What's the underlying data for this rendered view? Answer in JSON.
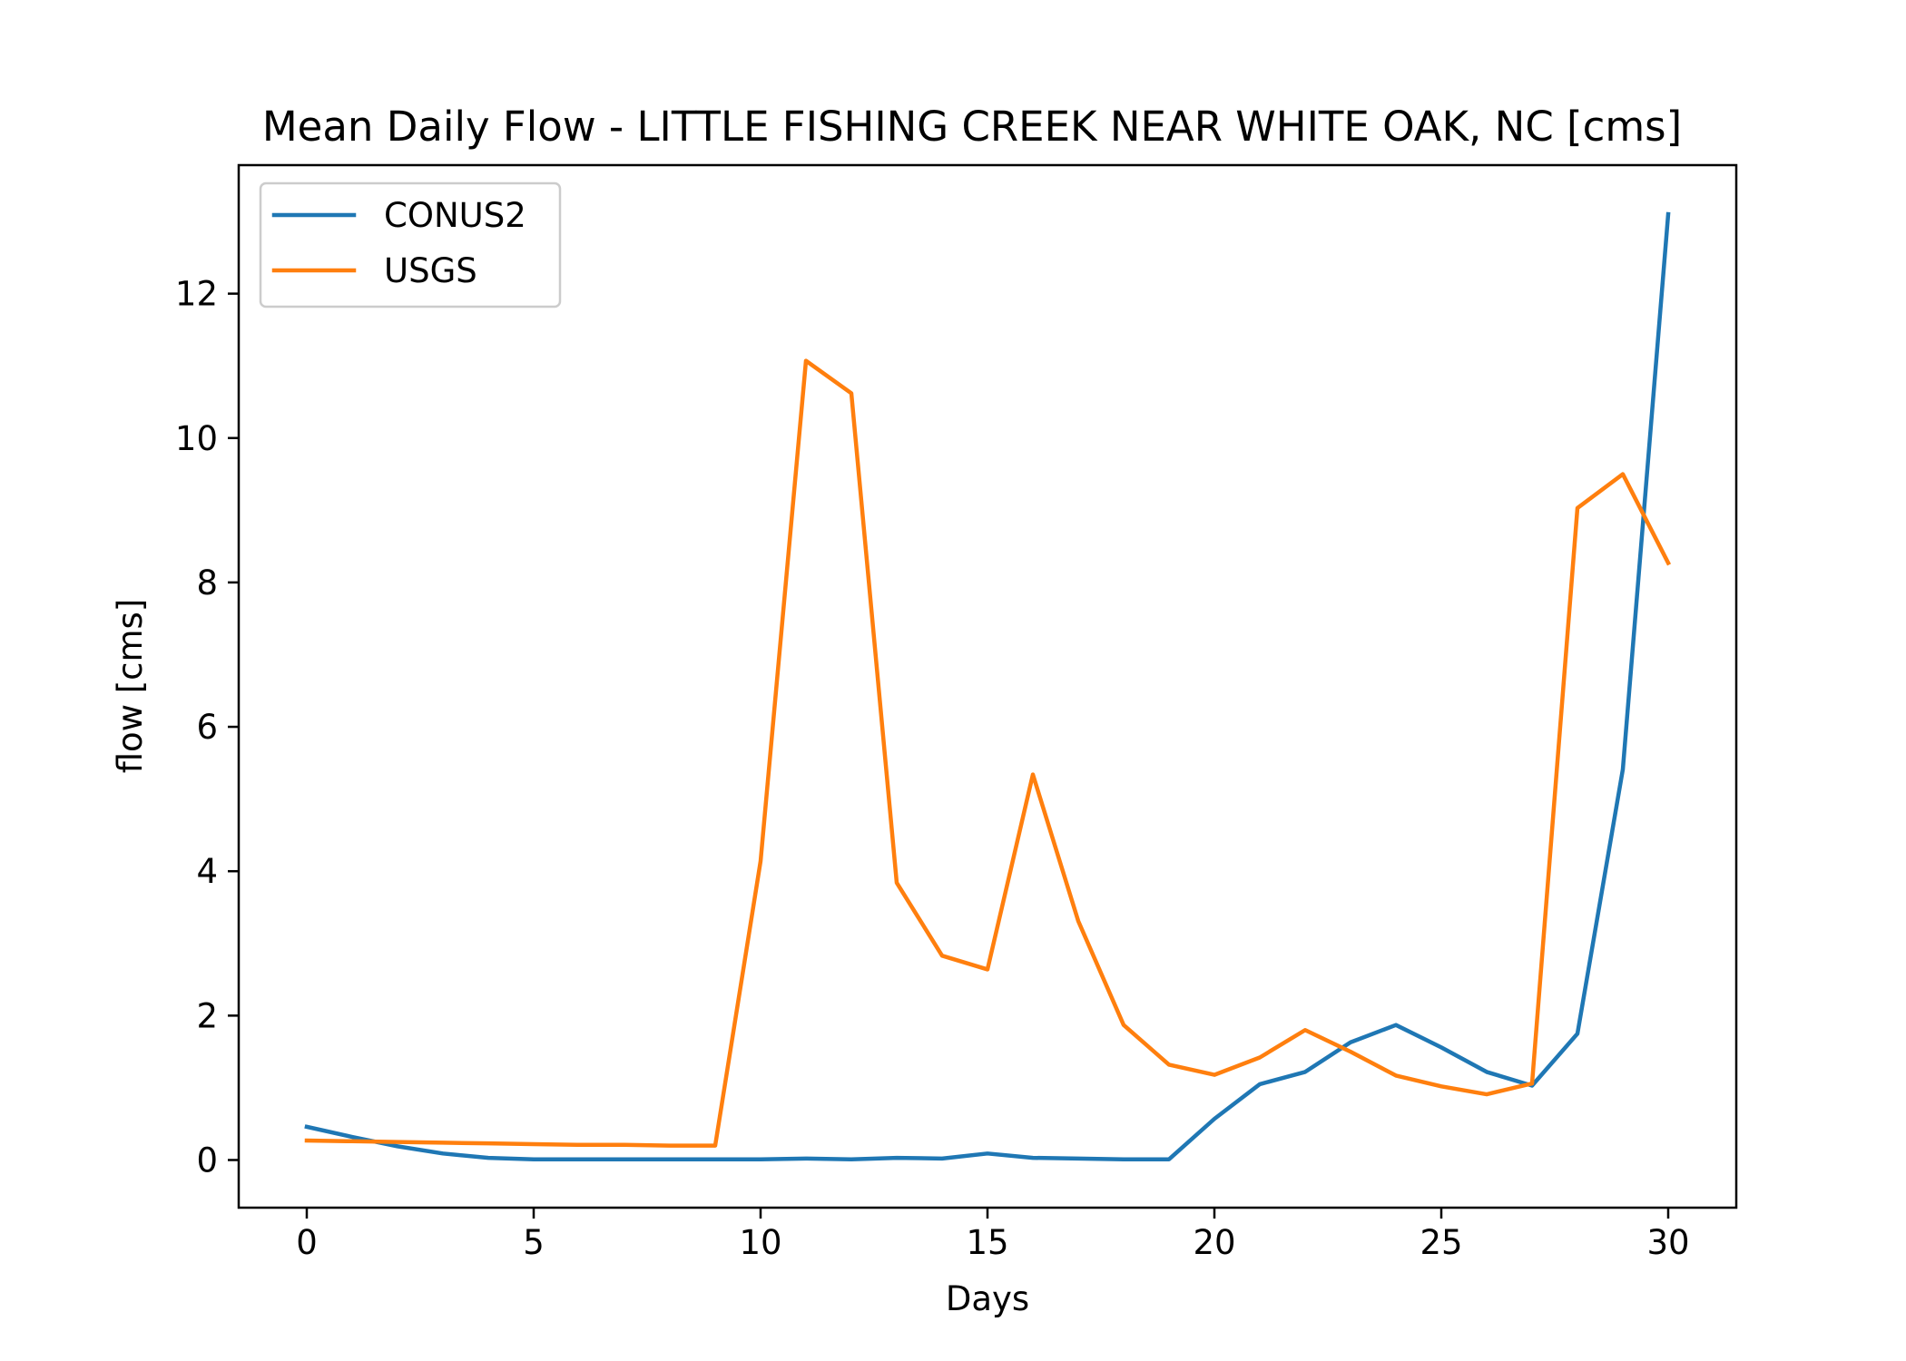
{
  "chart_data": {
    "type": "line",
    "title": "Mean Daily Flow - LITTLE FISHING CREEK NEAR WHITE OAK, NC [cms]",
    "xlabel": "Days",
    "ylabel": "flow [cms]",
    "xlim": [
      -1.5,
      31.5
    ],
    "ylim": [
      -0.66,
      13.78
    ],
    "xticks": [
      0,
      5,
      10,
      15,
      20,
      25,
      30
    ],
    "xtick_labels": [
      "0",
      "5",
      "10",
      "15",
      "20",
      "25",
      "30"
    ],
    "yticks": [
      0,
      2,
      4,
      6,
      8,
      10,
      12
    ],
    "ytick_labels": [
      "0",
      "2",
      "4",
      "6",
      "8",
      "10",
      "12"
    ],
    "grid": false,
    "legend_position": "upper-left",
    "x": [
      0,
      1,
      2,
      3,
      4,
      5,
      6,
      7,
      8,
      9,
      10,
      11,
      12,
      13,
      14,
      15,
      16,
      17,
      18,
      19,
      20,
      21,
      22,
      23,
      24,
      25,
      26,
      27,
      28,
      29,
      30
    ],
    "series": [
      {
        "name": "CONUS2",
        "color": "#1f77b4",
        "values": [
          0.46,
          0.32,
          0.19,
          0.09,
          0.03,
          0.01,
          0.01,
          0.01,
          0.01,
          0.01,
          0.01,
          0.02,
          0.01,
          0.03,
          0.02,
          0.09,
          0.03,
          0.02,
          0.01,
          0.01,
          0.57,
          1.05,
          1.22,
          1.63,
          1.87,
          1.56,
          1.22,
          1.03,
          1.75,
          5.41,
          13.1
        ]
      },
      {
        "name": "USGS",
        "color": "#ff7f0e",
        "values": [
          0.27,
          0.26,
          0.25,
          0.24,
          0.23,
          0.22,
          0.21,
          0.21,
          0.2,
          0.2,
          4.14,
          11.07,
          10.62,
          3.84,
          2.83,
          2.64,
          5.34,
          3.31,
          1.87,
          1.32,
          1.18,
          1.42,
          1.8,
          1.5,
          1.17,
          1.02,
          0.91,
          1.06,
          9.03,
          9.5,
          8.27
        ]
      }
    ]
  }
}
